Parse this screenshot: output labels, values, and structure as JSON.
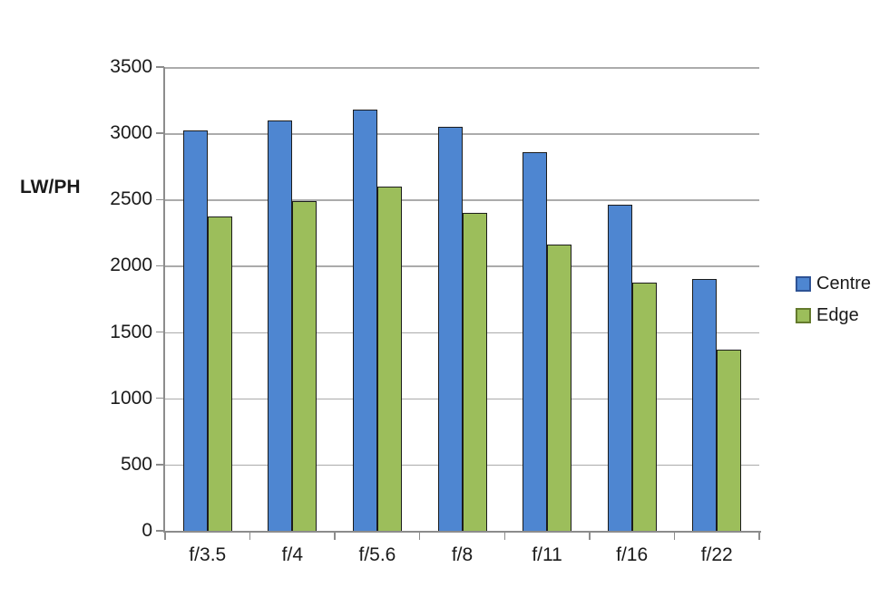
{
  "chart_data": {
    "type": "bar",
    "title": "",
    "xlabel": "",
    "ylabel": "LW/PH",
    "categories": [
      "f/3.5",
      "f/4",
      "f/5.6",
      "f/8",
      "f/11",
      "f/16",
      "f/22"
    ],
    "series": [
      {
        "name": "Centre",
        "color": "#4E86D1",
        "border_color": "#1C1C1C",
        "marker_border": "#2E5395",
        "values": [
          3020,
          3100,
          3180,
          3050,
          2860,
          2460,
          1900
        ]
      },
      {
        "name": "Edge",
        "color": "#9CBE5B",
        "border_color": "#1C1C1C",
        "marker_border": "#647A2D",
        "values": [
          2370,
          2490,
          2600,
          2400,
          2160,
          1870,
          1370
        ]
      }
    ],
    "ylim": [
      0,
      3500
    ],
    "ytick_step": 500,
    "grid": true,
    "legend_position": "right",
    "colors": {
      "gridline": "#ABABAB",
      "axis": "#8C8C8C",
      "text": "#1A1A1A",
      "background": "#FFFFFF"
    }
  }
}
